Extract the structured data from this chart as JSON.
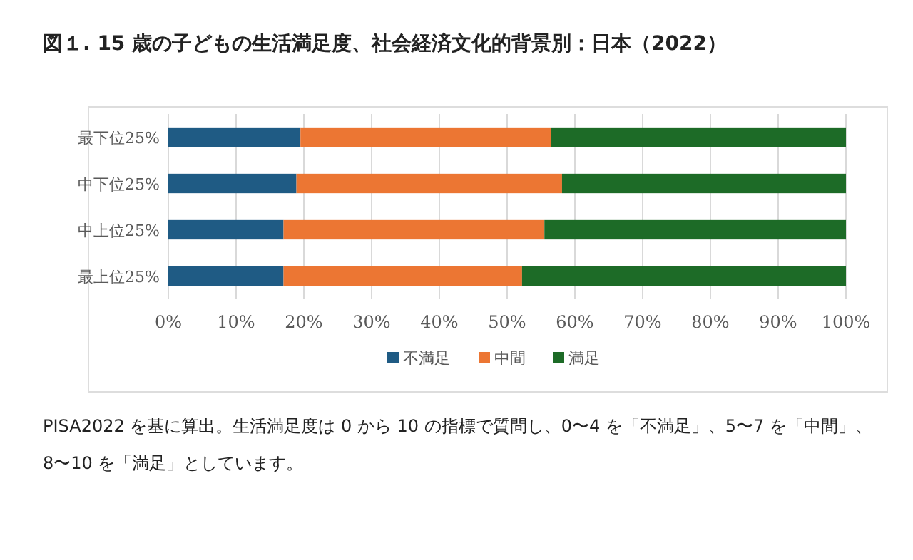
{
  "chart_data": {
    "type": "bar",
    "orientation": "horizontal",
    "stacked": true,
    "title": "図１. 15 歳の子どもの生活満足度、社会経済文化的背景別：日本（2022）",
    "categories": [
      "最下位25%",
      "中下位25%",
      "中上位25%",
      "最上位25%"
    ],
    "series": [
      {
        "name": "不満足",
        "color": "#1f5b84",
        "values": [
          19.5,
          18.9,
          17.0,
          17.0
        ]
      },
      {
        "name": "中間",
        "color": "#ec7633",
        "values": [
          37.0,
          39.2,
          38.5,
          35.2
        ]
      },
      {
        "name": "満足",
        "color": "#1d6b27",
        "values": [
          43.5,
          41.9,
          44.5,
          47.8
        ]
      }
    ],
    "xlim": [
      0,
      100
    ],
    "xticks": [
      {
        "value": 0,
        "label": "0%"
      },
      {
        "value": 10,
        "label": "10%"
      },
      {
        "value": 20,
        "label": "20%"
      },
      {
        "value": 30,
        "label": "30%"
      },
      {
        "value": 40,
        "label": "40%"
      },
      {
        "value": 50,
        "label": "50%"
      },
      {
        "value": 60,
        "label": "60%"
      },
      {
        "value": 70,
        "label": "70%"
      },
      {
        "value": 80,
        "label": "80%"
      },
      {
        "value": 90,
        "label": "90%"
      },
      {
        "value": 100,
        "label": "100%"
      }
    ],
    "grid": "x",
    "legend": "bottom",
    "annotations": [
      "PISA2022 を基に算出。生活満足度は 0 から 10 の指標で質問し、0〜4 を「不満足」、5〜7 を「中間」、8〜10 を「満足」としています。"
    ]
  }
}
